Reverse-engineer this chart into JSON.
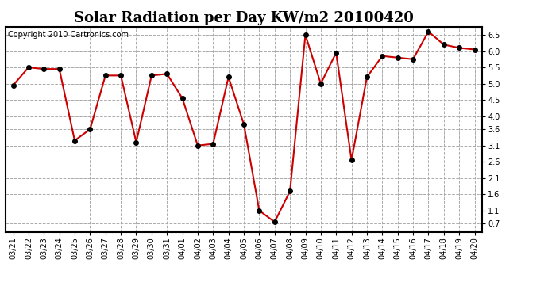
{
  "title": "Solar Radiation per Day KW/m2 20100420",
  "copyright": "Copyright 2010 Cartronics.com",
  "x_labels": [
    "03/21",
    "03/22",
    "03/23",
    "03/24",
    "03/25",
    "03/26",
    "03/27",
    "03/28",
    "03/29",
    "03/30",
    "03/31",
    "04/01",
    "04/02",
    "04/03",
    "04/04",
    "04/05",
    "04/06",
    "04/07",
    "04/08",
    "04/09",
    "04/10",
    "04/11",
    "04/12",
    "04/13",
    "04/14",
    "04/15",
    "04/16",
    "04/17",
    "04/18",
    "04/19",
    "04/20"
  ],
  "y_values": [
    4.95,
    5.5,
    5.45,
    5.45,
    3.25,
    3.6,
    5.25,
    5.25,
    3.2,
    5.25,
    5.3,
    4.55,
    3.1,
    3.15,
    5.2,
    3.75,
    1.1,
    0.75,
    1.7,
    6.5,
    5.0,
    5.95,
    2.65,
    5.2,
    5.85,
    5.8,
    5.75,
    6.6,
    6.2,
    6.1,
    6.05
  ],
  "line_color": "#cc0000",
  "marker": ".",
  "marker_color": "#000000",
  "marker_size": 4,
  "line_width": 1.5,
  "bg_color": "#ffffff",
  "plot_bg_color": "#ffffff",
  "grid_color": "#aaaaaa",
  "grid_style": "--",
  "ytick_labels": [
    "0.7",
    "1.1",
    "1.6",
    "2.1",
    "2.6",
    "3.1",
    "3.6",
    "4.0",
    "4.5",
    "5.0",
    "5.5",
    "6.0",
    "6.5"
  ],
  "ytick_values": [
    0.7,
    1.1,
    1.6,
    2.1,
    2.6,
    3.1,
    3.6,
    4.0,
    4.5,
    5.0,
    5.5,
    6.0,
    6.5
  ],
  "ylim": [
    0.45,
    6.75
  ],
  "title_fontsize": 13,
  "copyright_fontsize": 7,
  "tick_fontsize": 7
}
